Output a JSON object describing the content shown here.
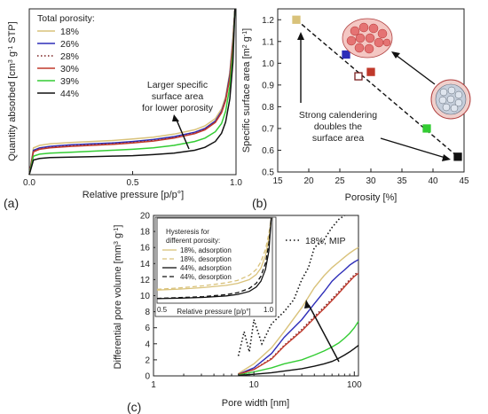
{
  "panels": {
    "a": {
      "letter": "(a)",
      "xlabel": "Relative pressure [p/p°]",
      "ylabel": "Quantity absorbed [cm",
      "ylabel_sup1": "3",
      "ylabel_mid": " g",
      "ylabel_sup2": "-1",
      "ylabel_end": " STP]",
      "xticks": [
        "0.0",
        "0.5",
        "1.0"
      ],
      "legend_title": "Total porosity:",
      "annotation": [
        "Larger specific",
        "surface area",
        "for lower porosity"
      ]
    },
    "b": {
      "letter": "(b)",
      "xlabel": "Porosity [%]",
      "ylabel": "Specific surface area [m",
      "ylabel_sup1": "2",
      "ylabel_mid": " g",
      "ylabel_sup2": "-1",
      "ylabel_end": "]",
      "xticks": [
        "15",
        "20",
        "25",
        "30",
        "35",
        "40",
        "45"
      ],
      "yticks": [
        "0.5",
        "0.6",
        "0.7",
        "0.8",
        "0.9",
        "1.0",
        "1.1",
        "1.2"
      ],
      "annotation": [
        "Strong calendering",
        "doubles the",
        "surface area"
      ]
    },
    "c": {
      "letter": "(c)",
      "xlabel": "Pore width [nm]",
      "ylabel": "Differential pore volume [mm",
      "ylabel_sup1": "3",
      "ylabel_mid": " g",
      "ylabel_sup2": "-1",
      "ylabel_end": "]",
      "xticks": [
        "1",
        "10",
        "100"
      ],
      "yticks": [
        "0",
        "2",
        "4",
        "6",
        "8",
        "10",
        "12",
        "14",
        "16",
        "18",
        "20"
      ],
      "mip_label": "18%, MIP",
      "inset": {
        "title": [
          "Hysteresis for",
          "different porosity:"
        ],
        "xlabel": "Relative pressure [p/p°]",
        "xticks": [
          "0.5",
          "1.0"
        ],
        "legend": [
          "18%, adsorption",
          "18%, desorption",
          "44%, adsorption",
          "44%, desorption"
        ]
      }
    }
  },
  "chart_data": [
    {
      "type": "line",
      "panel": "a",
      "xlabel": "Relative pressure [p/p°]",
      "ylabel": "Quantity absorbed [cm3 g-1 STP]",
      "xlim": [
        0,
        1
      ],
      "legend_title": "Total porosity:",
      "legend_position": "top-left",
      "series": [
        {
          "name": "18%",
          "color": "#d9c27a",
          "dash": "solid",
          "x": [
            0,
            0.02,
            0.05,
            0.1,
            0.2,
            0.3,
            0.4,
            0.5,
            0.6,
            0.7,
            0.8,
            0.85,
            0.9,
            0.93,
            0.95,
            0.97,
            0.985,
            0.995
          ],
          "y": [
            0,
            0.55,
            0.6,
            0.63,
            0.66,
            0.68,
            0.7,
            0.73,
            0.77,
            0.83,
            0.92,
            1.0,
            1.15,
            1.35,
            1.6,
            2.1,
            2.8,
            3.6
          ]
        },
        {
          "name": "26%",
          "color": "#2d2db8",
          "dash": "solid",
          "x": [
            0,
            0.02,
            0.05,
            0.1,
            0.2,
            0.3,
            0.4,
            0.5,
            0.6,
            0.7,
            0.8,
            0.85,
            0.9,
            0.93,
            0.95,
            0.97,
            0.985,
            0.995
          ],
          "y": [
            0,
            0.5,
            0.55,
            0.58,
            0.61,
            0.63,
            0.65,
            0.68,
            0.72,
            0.78,
            0.87,
            0.95,
            1.1,
            1.3,
            1.55,
            2.05,
            2.75,
            3.6
          ]
        },
        {
          "name": "28%",
          "color": "#7a1f1f",
          "dash": "dotted",
          "x": [
            0,
            0.02,
            0.05,
            0.1,
            0.2,
            0.3,
            0.4,
            0.5,
            0.6,
            0.7,
            0.8,
            0.85,
            0.9,
            0.93,
            0.95,
            0.97,
            0.985,
            0.995
          ],
          "y": [
            0,
            0.48,
            0.53,
            0.56,
            0.59,
            0.61,
            0.63,
            0.66,
            0.7,
            0.76,
            0.85,
            0.93,
            1.08,
            1.28,
            1.53,
            2.0,
            2.7,
            3.6
          ]
        },
        {
          "name": "30%",
          "color": "#c0392b",
          "dash": "solid",
          "x": [
            0,
            0.02,
            0.05,
            0.1,
            0.2,
            0.3,
            0.4,
            0.5,
            0.6,
            0.7,
            0.8,
            0.85,
            0.9,
            0.93,
            0.95,
            0.97,
            0.985,
            0.995
          ],
          "y": [
            0,
            0.47,
            0.52,
            0.55,
            0.58,
            0.6,
            0.62,
            0.65,
            0.69,
            0.75,
            0.84,
            0.92,
            1.07,
            1.27,
            1.52,
            1.98,
            2.7,
            3.6
          ]
        },
        {
          "name": "39%",
          "color": "#33cc33",
          "dash": "solid",
          "x": [
            0,
            0.02,
            0.05,
            0.1,
            0.2,
            0.3,
            0.4,
            0.5,
            0.6,
            0.7,
            0.8,
            0.85,
            0.9,
            0.93,
            0.95,
            0.97,
            0.985,
            0.995
          ],
          "y": [
            0,
            0.38,
            0.42,
            0.44,
            0.46,
            0.48,
            0.5,
            0.52,
            0.55,
            0.6,
            0.68,
            0.75,
            0.88,
            1.05,
            1.3,
            1.8,
            2.5,
            3.6
          ]
        },
        {
          "name": "44%",
          "color": "#111111",
          "dash": "solid",
          "x": [
            0,
            0.02,
            0.05,
            0.1,
            0.2,
            0.3,
            0.4,
            0.5,
            0.6,
            0.7,
            0.8,
            0.85,
            0.9,
            0.93,
            0.95,
            0.97,
            0.985,
            0.995
          ],
          "y": [
            0,
            0.3,
            0.33,
            0.35,
            0.36,
            0.37,
            0.38,
            0.39,
            0.41,
            0.44,
            0.5,
            0.56,
            0.68,
            0.85,
            1.08,
            1.55,
            2.3,
            3.6
          ]
        }
      ]
    },
    {
      "type": "scatter",
      "panel": "b",
      "xlabel": "Porosity [%]",
      "ylabel": "Specific surface area [m2 g-1]",
      "xlim": [
        15,
        45
      ],
      "ylim": [
        0.5,
        1.25
      ],
      "points": [
        {
          "x": 18,
          "y": 1.2,
          "color": "#d9c27a",
          "filled": true
        },
        {
          "x": 26,
          "y": 1.04,
          "color": "#2d2db8",
          "filled": true
        },
        {
          "x": 28,
          "y": 0.94,
          "color": "#7a1f1f",
          "filled": false
        },
        {
          "x": 30,
          "y": 0.96,
          "color": "#c0392b",
          "filled": true
        },
        {
          "x": 39,
          "y": 0.7,
          "color": "#33cc33",
          "filled": true
        },
        {
          "x": 44,
          "y": 0.57,
          "color": "#111111",
          "filled": true
        }
      ],
      "trend": {
        "x": [
          18,
          44
        ],
        "y": [
          1.2,
          0.57
        ],
        "dash": "dashed"
      }
    },
    {
      "type": "line",
      "panel": "c",
      "xlabel": "Pore width [nm]",
      "ylabel": "Differential pore volume [mm3 g-1]",
      "xscale": "log",
      "xlim": [
        1,
        110
      ],
      "ylim": [
        0,
        20
      ],
      "series": [
        {
          "name": "18%",
          "color": "#d9c27a",
          "dash": "solid",
          "x": [
            7,
            10,
            15,
            20,
            30,
            40,
            50,
            60,
            70,
            80,
            90,
            100,
            110
          ],
          "y": [
            0.3,
            1.5,
            3.5,
            5.5,
            8.5,
            11.0,
            12.5,
            13.5,
            14.2,
            14.8,
            15.3,
            15.7,
            16.0
          ]
        },
        {
          "name": "26%",
          "color": "#2d2db8",
          "dash": "solid",
          "x": [
            7,
            10,
            15,
            20,
            30,
            40,
            50,
            60,
            70,
            80,
            90,
            100,
            110
          ],
          "y": [
            0.2,
            1.0,
            2.8,
            4.8,
            7.0,
            9.0,
            10.5,
            11.8,
            12.6,
            13.2,
            13.8,
            14.2,
            14.5
          ]
        },
        {
          "name": "28%",
          "color": "#7a1f1f",
          "dash": "dotted",
          "x": [
            7,
            10,
            15,
            20,
            30,
            40,
            50,
            60,
            70,
            80,
            90,
            100,
            110
          ],
          "y": [
            0.2,
            0.8,
            2.2,
            3.8,
            5.8,
            7.4,
            8.6,
            9.6,
            10.5,
            11.3,
            12.0,
            12.6,
            13.0
          ]
        },
        {
          "name": "30%",
          "color": "#c0392b",
          "dash": "solid",
          "x": [
            7,
            10,
            15,
            20,
            30,
            40,
            50,
            60,
            70,
            80,
            90,
            100,
            110
          ],
          "y": [
            0.2,
            0.8,
            2.1,
            3.7,
            5.6,
            7.2,
            8.4,
            9.4,
            10.3,
            11.1,
            11.8,
            12.4,
            12.8
          ]
        },
        {
          "name": "39%",
          "color": "#33cc33",
          "dash": "solid",
          "x": [
            7,
            10,
            15,
            20,
            30,
            40,
            50,
            60,
            70,
            80,
            90,
            100,
            110
          ],
          "y": [
            0.1,
            0.5,
            1.0,
            1.5,
            2.0,
            2.6,
            3.1,
            3.6,
            4.1,
            4.7,
            5.3,
            6.0,
            6.8
          ]
        },
        {
          "name": "44%",
          "color": "#111111",
          "dash": "solid",
          "x": [
            7,
            10,
            15,
            20,
            30,
            40,
            50,
            60,
            70,
            80,
            90,
            100,
            110
          ],
          "y": [
            0.05,
            0.2,
            0.4,
            0.6,
            0.9,
            1.2,
            1.5,
            1.8,
            2.2,
            2.6,
            3.0,
            3.4,
            3.8
          ]
        },
        {
          "name": "18%, MIP",
          "color": "#111111",
          "dash": "dotted",
          "x": [
            7,
            8,
            9,
            10,
            12,
            15,
            20,
            25,
            30,
            35,
            40,
            50,
            60,
            70,
            80
          ],
          "y": [
            2.5,
            5.5,
            3.0,
            7.0,
            4.0,
            6.5,
            8.0,
            9.5,
            12.0,
            13.5,
            16.0,
            17.0,
            18.5,
            19.5,
            20.0
          ]
        }
      ],
      "inset": {
        "type": "line",
        "xlabel": "Relative pressure [p/p°]",
        "xlim": [
          0.5,
          1.0
        ],
        "series": [
          {
            "name": "18%, adsorption",
            "color": "#d9c27a",
            "dash": "solid",
            "x": [
              0.5,
              0.6,
              0.7,
              0.8,
              0.85,
              0.9,
              0.93,
              0.95,
              0.97,
              0.985,
              0.995
            ],
            "y": [
              0.73,
              0.77,
              0.83,
              0.92,
              1.0,
              1.15,
              1.35,
              1.6,
              2.1,
              2.8,
              3.6
            ]
          },
          {
            "name": "18%, desorption",
            "color": "#d9c27a",
            "dash": "dashed",
            "x": [
              0.5,
              0.6,
              0.7,
              0.8,
              0.85,
              0.9,
              0.93,
              0.95,
              0.97,
              0.985,
              0.995
            ],
            "y": [
              0.76,
              0.82,
              0.9,
              1.02,
              1.12,
              1.32,
              1.55,
              1.85,
              2.35,
              3.0,
              3.6
            ]
          },
          {
            "name": "44%, adsorption",
            "color": "#111111",
            "dash": "solid",
            "x": [
              0.5,
              0.6,
              0.7,
              0.8,
              0.85,
              0.9,
              0.93,
              0.95,
              0.97,
              0.985,
              0.995
            ],
            "y": [
              0.39,
              0.41,
              0.44,
              0.5,
              0.56,
              0.68,
              0.85,
              1.08,
              1.55,
              2.3,
              3.6
            ]
          },
          {
            "name": "44%, desorption",
            "color": "#111111",
            "dash": "dashed",
            "x": [
              0.5,
              0.6,
              0.7,
              0.8,
              0.85,
              0.9,
              0.93,
              0.95,
              0.97,
              0.985,
              0.995
            ],
            "y": [
              0.4,
              0.43,
              0.47,
              0.55,
              0.63,
              0.8,
              1.0,
              1.28,
              1.8,
              2.6,
              3.6
            ]
          }
        ]
      }
    }
  ]
}
